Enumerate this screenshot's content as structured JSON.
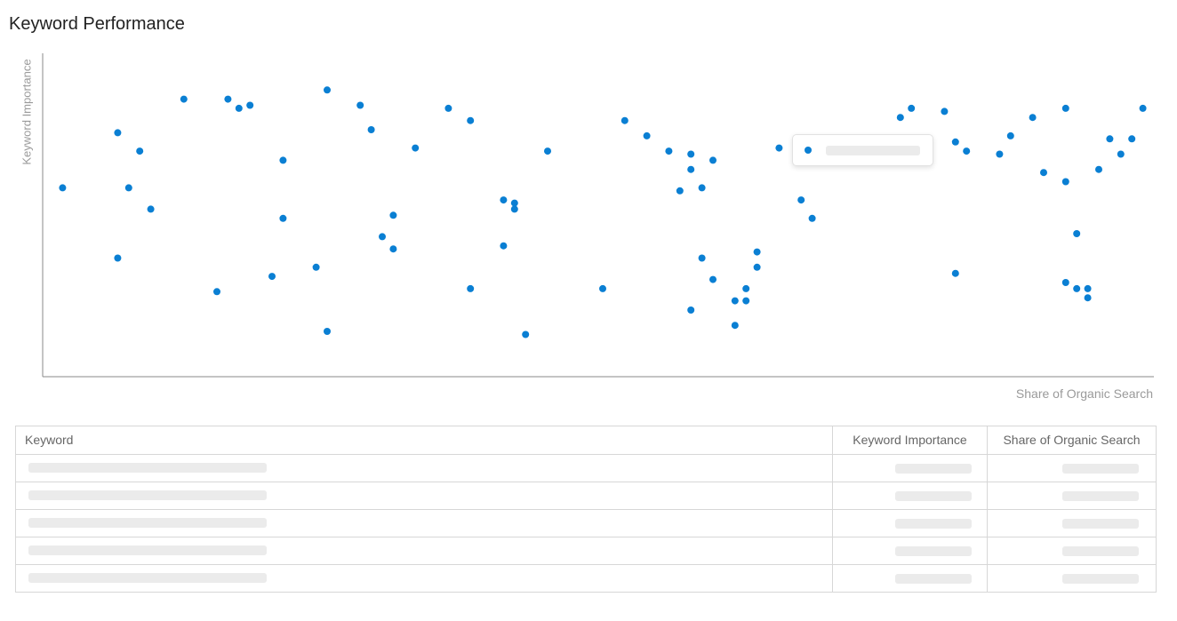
{
  "title": "Keyword Performance",
  "chart_data": {
    "type": "scatter",
    "ylabel": "Keyword Importance",
    "xlabel": "Share of Organic Search",
    "xlim": [
      0,
      100
    ],
    "ylim": [
      0,
      100
    ],
    "point_color": "#0a7fd3",
    "grid": false,
    "points": [
      [
        1,
        56
      ],
      [
        6,
        74
      ],
      [
        6,
        33
      ],
      [
        7,
        56
      ],
      [
        8,
        68
      ],
      [
        9,
        49
      ],
      [
        12,
        85
      ],
      [
        15,
        22
      ],
      [
        16,
        85
      ],
      [
        17,
        82
      ],
      [
        18,
        83
      ],
      [
        21,
        65
      ],
      [
        20,
        27
      ],
      [
        21,
        46
      ],
      [
        24,
        30
      ],
      [
        25,
        88
      ],
      [
        25,
        9
      ],
      [
        28,
        83
      ],
      [
        29,
        75
      ],
      [
        30,
        40
      ],
      [
        31,
        47
      ],
      [
        31,
        36
      ],
      [
        33,
        69
      ],
      [
        36,
        82
      ],
      [
        38,
        78
      ],
      [
        38,
        23
      ],
      [
        41,
        52
      ],
      [
        42,
        49
      ],
      [
        41,
        37
      ],
      [
        42,
        51
      ],
      [
        43,
        8
      ],
      [
        45,
        68
      ],
      [
        50,
        23
      ],
      [
        52,
        78
      ],
      [
        54,
        73
      ],
      [
        56,
        68
      ],
      [
        58,
        62
      ],
      [
        58,
        67
      ],
      [
        58,
        16
      ],
      [
        60,
        65
      ],
      [
        59,
        56
      ],
      [
        57,
        55
      ],
      [
        59,
        33
      ],
      [
        62,
        11
      ],
      [
        60,
        26
      ],
      [
        62,
        19
      ],
      [
        63,
        19
      ],
      [
        63,
        23
      ],
      [
        64,
        35
      ],
      [
        64,
        30
      ],
      [
        66,
        69
      ],
      [
        68,
        52
      ],
      [
        69,
        46
      ],
      [
        77,
        79
      ],
      [
        78,
        82
      ],
      [
        81,
        81
      ],
      [
        82,
        71
      ],
      [
        82,
        28
      ],
      [
        83,
        68
      ],
      [
        86,
        67
      ],
      [
        87,
        73
      ],
      [
        89,
        79
      ],
      [
        90,
        61
      ],
      [
        92,
        82
      ],
      [
        92,
        58
      ],
      [
        93,
        41
      ],
      [
        92,
        25
      ],
      [
        93,
        23
      ],
      [
        94,
        23
      ],
      [
        94,
        20
      ],
      [
        95,
        62
      ],
      [
        96,
        72
      ],
      [
        97,
        67
      ],
      [
        98,
        72
      ],
      [
        99,
        82
      ]
    ]
  },
  "tooltip": {},
  "table": {
    "headers": [
      "Keyword",
      "Keyword Importance",
      "Share of Organic Search"
    ],
    "row_count": 5
  }
}
